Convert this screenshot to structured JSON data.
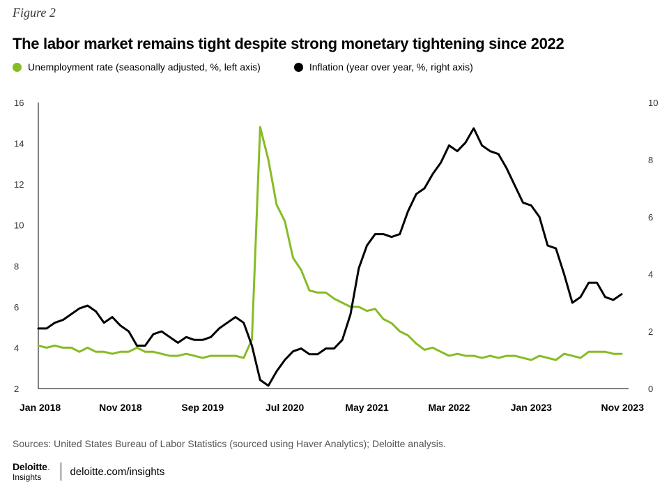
{
  "figure_label": "Figure 2",
  "title": "The labor market remains tight despite strong monetary tightening since 2022",
  "legend": [
    {
      "label": "Unemployment rate (seasonally adjusted, %, left axis)",
      "color": "#86bc25"
    },
    {
      "label": "Inflation (year over year, %, right axis)",
      "color": "#000000"
    }
  ],
  "sources": "Sources: United States Bureau of Labor Statistics (sourced using Haver Analytics); Deloitte analysis.",
  "footer": {
    "brand": "Deloitte",
    "brand_dot": ".",
    "brand_sub": "Insights",
    "site": "deloitte.com/insights"
  },
  "chart_data": {
    "type": "line",
    "x_ticks": [
      "Jan 2018",
      "Nov 2018",
      "Sep 2019",
      "Jul 2020",
      "May 2021",
      "Mar 2022",
      "Jan 2023",
      "Nov 2023"
    ],
    "x_tick_month_index": [
      0,
      10,
      20,
      30,
      40,
      50,
      60,
      70
    ],
    "x_range": [
      "Jan 2018",
      "Nov 2023"
    ],
    "left_axis": {
      "min": 2,
      "max": 16,
      "ticks": [
        2,
        4,
        6,
        8,
        10,
        12,
        14,
        16
      ]
    },
    "right_axis": {
      "min": 0,
      "max": 10,
      "ticks": [
        0,
        2,
        4,
        6,
        8,
        10
      ]
    },
    "grid": false,
    "series": [
      {
        "name": "Unemployment rate (seasonally adjusted, %, left axis)",
        "axis": "left",
        "color": "#86bc25",
        "values": [
          4.1,
          4.0,
          4.1,
          4.0,
          4.0,
          3.8,
          4.0,
          3.8,
          3.8,
          3.7,
          3.8,
          3.8,
          4.0,
          3.8,
          3.8,
          3.7,
          3.6,
          3.6,
          3.7,
          3.6,
          3.5,
          3.6,
          3.6,
          3.6,
          3.6,
          3.5,
          4.4,
          14.8,
          13.2,
          11.0,
          10.2,
          8.4,
          7.8,
          6.8,
          6.7,
          6.7,
          6.4,
          6.2,
          6.0,
          6.0,
          5.8,
          5.9,
          5.4,
          5.2,
          4.8,
          4.6,
          4.2,
          3.9,
          4.0,
          3.8,
          3.6,
          3.7,
          3.6,
          3.6,
          3.5,
          3.6,
          3.5,
          3.6,
          3.6,
          3.5,
          3.4,
          3.6,
          3.5,
          3.4,
          3.7,
          3.6,
          3.5,
          3.8,
          3.8,
          3.8,
          3.7,
          3.7
        ]
      },
      {
        "name": "Inflation (year over year, %, right axis)",
        "axis": "right",
        "color": "#000000",
        "values": [
          2.1,
          2.1,
          2.3,
          2.4,
          2.6,
          2.8,
          2.9,
          2.7,
          2.3,
          2.5,
          2.2,
          2.0,
          1.5,
          1.5,
          1.9,
          2.0,
          1.8,
          1.6,
          1.8,
          1.7,
          1.7,
          1.8,
          2.1,
          2.3,
          2.5,
          2.3,
          1.5,
          0.3,
          0.1,
          0.6,
          1.0,
          1.3,
          1.4,
          1.2,
          1.2,
          1.4,
          1.4,
          1.7,
          2.6,
          4.2,
          5.0,
          5.4,
          5.4,
          5.3,
          5.4,
          6.2,
          6.8,
          7.0,
          7.5,
          7.9,
          8.5,
          8.3,
          8.6,
          9.1,
          8.5,
          8.3,
          8.2,
          7.7,
          7.1,
          6.5,
          6.4,
          6.0,
          5.0,
          4.9,
          4.0,
          3.0,
          3.2,
          3.7,
          3.7,
          3.2,
          3.1,
          3.3
        ]
      }
    ]
  }
}
